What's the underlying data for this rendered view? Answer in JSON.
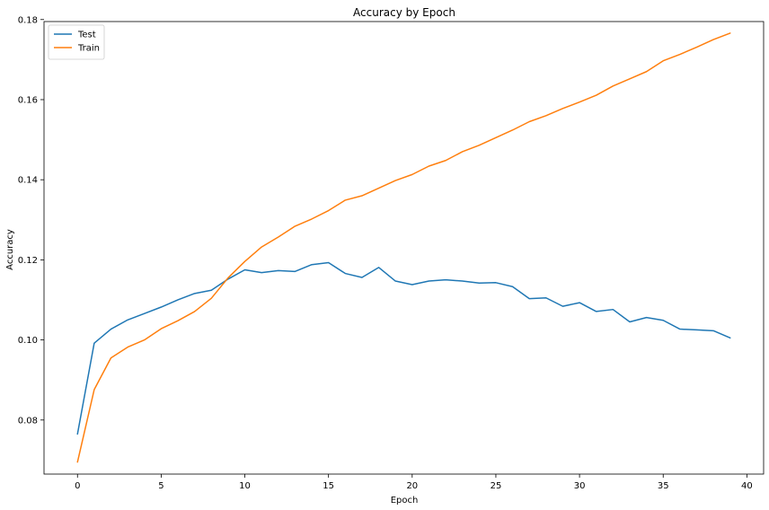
{
  "chart_data": {
    "type": "line",
    "title": "Accuracy by Epoch",
    "xlabel": "Epoch",
    "ylabel": "Accuracy",
    "xlim": [
      -2,
      41
    ],
    "ylim": [
      0.0665,
      0.1795
    ],
    "xticks": [
      0,
      5,
      10,
      15,
      20,
      25,
      30,
      35,
      40
    ],
    "xtick_labels": [
      "0",
      "5",
      "10",
      "15",
      "20",
      "25",
      "30",
      "35",
      "40"
    ],
    "yticks": [
      0.08,
      0.1,
      0.12,
      0.14,
      0.16,
      0.18
    ],
    "ytick_labels": [
      "0.08",
      "0.10",
      "0.12",
      "0.14",
      "0.16",
      "0.18"
    ],
    "grid": false,
    "legend_position": "top-left",
    "x": [
      0,
      1,
      2,
      3,
      4,
      5,
      6,
      7,
      8,
      9,
      10,
      11,
      12,
      13,
      14,
      15,
      16,
      17,
      18,
      19,
      20,
      21,
      22,
      23,
      24,
      25,
      26,
      27,
      28,
      29,
      30,
      31,
      32,
      33,
      34,
      35,
      36,
      37,
      38,
      39
    ],
    "series": [
      {
        "name": "Test",
        "color": "#1f77b4",
        "values": [
          0.0765,
          0.0992,
          0.1027,
          0.105,
          0.1066,
          0.1082,
          0.11,
          0.1116,
          0.1124,
          0.1152,
          0.1175,
          0.1168,
          0.1173,
          0.1171,
          0.1188,
          0.1193,
          0.1166,
          0.1156,
          0.1181,
          0.1147,
          0.1138,
          0.1147,
          0.115,
          0.1147,
          0.1142,
          0.1143,
          0.1133,
          0.1103,
          0.1105,
          0.1084,
          0.1093,
          0.1071,
          0.1076,
          0.1045,
          0.1056,
          0.1049,
          0.1027,
          0.1025,
          0.1023,
          0.1005
        ]
      },
      {
        "name": "Train",
        "color": "#ff7f0e",
        "values": [
          0.0695,
          0.0876,
          0.0955,
          0.0982,
          0.1,
          0.1028,
          0.1048,
          0.1071,
          0.1104,
          0.1155,
          0.1196,
          0.1232,
          0.1257,
          0.1284,
          0.1302,
          0.1323,
          0.1349,
          0.136,
          0.1379,
          0.1398,
          0.1413,
          0.1434,
          0.1448,
          0.147,
          0.1486,
          0.1505,
          0.1524,
          0.1545,
          0.156,
          0.1578,
          0.1594,
          0.1611,
          0.1634,
          0.1652,
          0.167,
          0.1697,
          0.1713,
          0.1731,
          0.175,
          0.1766
        ]
      }
    ]
  }
}
